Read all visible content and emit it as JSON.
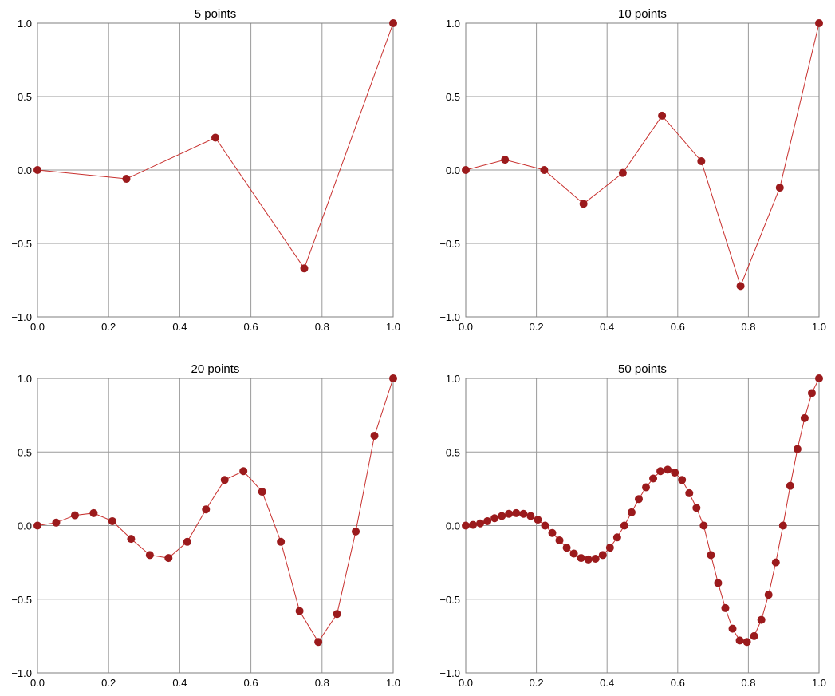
{
  "figure": {
    "colors": {
      "line": "#c8302e",
      "marker": "#9b1a1c",
      "grid": "#9a9a9a"
    }
  },
  "chart_data": [
    {
      "type": "line",
      "title": "5 points",
      "xlim": [
        0,
        1
      ],
      "ylim": [
        -1,
        1
      ],
      "xticks": [
        "0.0",
        "0.2",
        "0.4",
        "0.6",
        "0.8",
        "1.0"
      ],
      "yticks": [
        "−1.0",
        "−0.5",
        "0.0",
        "0.5",
        "1.0"
      ],
      "grid": true,
      "x": [
        0,
        0.25,
        0.5,
        0.75,
        1.0
      ],
      "y": [
        0,
        -0.06,
        0.22,
        -0.67,
        1.0
      ]
    },
    {
      "type": "line",
      "title": "10 points",
      "xlim": [
        0,
        1
      ],
      "ylim": [
        -1,
        1
      ],
      "xticks": [
        "0.0",
        "0.2",
        "0.4",
        "0.6",
        "0.8",
        "1.0"
      ],
      "yticks": [
        "−1.0",
        "−0.5",
        "0.0",
        "0.5",
        "1.0"
      ],
      "grid": true,
      "x": [
        0,
        0.1111,
        0.2222,
        0.3333,
        0.4444,
        0.5556,
        0.6667,
        0.7778,
        0.8889,
        1.0
      ],
      "y": [
        0,
        0.07,
        0.0,
        -0.23,
        -0.02,
        0.37,
        0.06,
        -0.79,
        -0.12,
        1.0
      ]
    },
    {
      "type": "line",
      "title": "20 points",
      "xlim": [
        0,
        1
      ],
      "ylim": [
        -1,
        1
      ],
      "xticks": [
        "0.0",
        "0.2",
        "0.4",
        "0.6",
        "0.8",
        "1.0"
      ],
      "yticks": [
        "−1.0",
        "−0.5",
        "0.0",
        "0.5",
        "1.0"
      ],
      "grid": true,
      "x": [
        0,
        0.0526,
        0.1053,
        0.1579,
        0.2105,
        0.2632,
        0.3158,
        0.3684,
        0.4211,
        0.4737,
        0.5263,
        0.5789,
        0.6316,
        0.6842,
        0.7368,
        0.7895,
        0.8421,
        0.8947,
        0.9474,
        1.0
      ],
      "y": [
        0,
        0.02,
        0.07,
        0.085,
        0.03,
        -0.09,
        -0.2,
        -0.22,
        -0.11,
        0.11,
        0.31,
        0.37,
        0.23,
        -0.11,
        -0.58,
        -0.79,
        -0.6,
        -0.04,
        0.61,
        1.0
      ]
    },
    {
      "type": "line",
      "title": "50 points",
      "xlim": [
        0,
        1
      ],
      "ylim": [
        -1,
        1
      ],
      "xticks": [
        "0.0",
        "0.2",
        "0.4",
        "0.6",
        "0.8",
        "1.0"
      ],
      "yticks": [
        "−1.0",
        "−0.5",
        "0.0",
        "0.5",
        "1.0"
      ],
      "grid": true,
      "x": [
        0,
        0.0204,
        0.0408,
        0.0612,
        0.0816,
        0.102,
        0.1224,
        0.1429,
        0.1633,
        0.1837,
        0.2041,
        0.2245,
        0.2449,
        0.2653,
        0.2857,
        0.3061,
        0.3265,
        0.3469,
        0.3673,
        0.3878,
        0.4082,
        0.4286,
        0.449,
        0.4694,
        0.4898,
        0.5102,
        0.5306,
        0.551,
        0.5714,
        0.5918,
        0.6122,
        0.6327,
        0.6531,
        0.6735,
        0.6939,
        0.7143,
        0.7347,
        0.7551,
        0.7755,
        0.7959,
        0.8163,
        0.8367,
        0.8571,
        0.8776,
        0.898,
        0.9184,
        0.9388,
        0.9592,
        0.9796,
        1.0
      ],
      "y": [
        0,
        0.005,
        0.015,
        0.03,
        0.05,
        0.065,
        0.08,
        0.085,
        0.08,
        0.065,
        0.04,
        0.0,
        -0.05,
        -0.1,
        -0.15,
        -0.19,
        -0.22,
        -0.23,
        -0.225,
        -0.2,
        -0.15,
        -0.08,
        0.0,
        0.09,
        0.18,
        0.26,
        0.32,
        0.37,
        0.38,
        0.36,
        0.31,
        0.22,
        0.12,
        0.0,
        -0.2,
        -0.39,
        -0.56,
        -0.7,
        -0.78,
        -0.79,
        -0.75,
        -0.64,
        -0.47,
        -0.25,
        0.0,
        0.27,
        0.52,
        0.73,
        0.9,
        1.0
      ]
    }
  ]
}
